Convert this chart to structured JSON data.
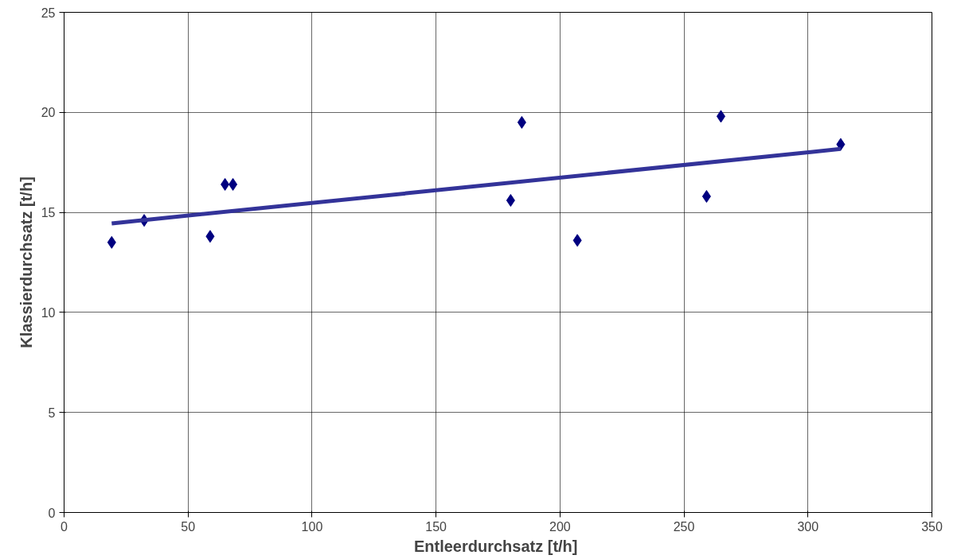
{
  "chart_data": {
    "type": "scatter",
    "xlabel": "Entleerdurchsatz  [t/h]",
    "ylabel": "Klassierdurchsatz [t/h]",
    "xlim": [
      0,
      350
    ],
    "ylim": [
      0,
      25
    ],
    "xticks": [
      0,
      50,
      100,
      150,
      200,
      250,
      300,
      350
    ],
    "yticks": [
      0,
      5,
      10,
      15,
      20,
      25
    ],
    "grid": true,
    "series": [
      {
        "type": "scatter",
        "marker": "diamond",
        "color": "#000080",
        "x": [
          19.2,
          32.3,
          58.9,
          64.9,
          68.1,
          180.1,
          184.6,
          207,
          259.1,
          264.9,
          313.2
        ],
        "values": [
          13.5,
          14.6,
          13.8,
          16.4,
          16.4,
          15.6,
          19.5,
          13.6,
          15.8,
          19.8,
          18.4
        ]
      },
      {
        "type": "line",
        "marker": "none",
        "line_style": "solid",
        "color": "#333399",
        "x": [
          19.2,
          313.2
        ],
        "values": [
          14.45,
          18.17
        ]
      }
    ]
  }
}
